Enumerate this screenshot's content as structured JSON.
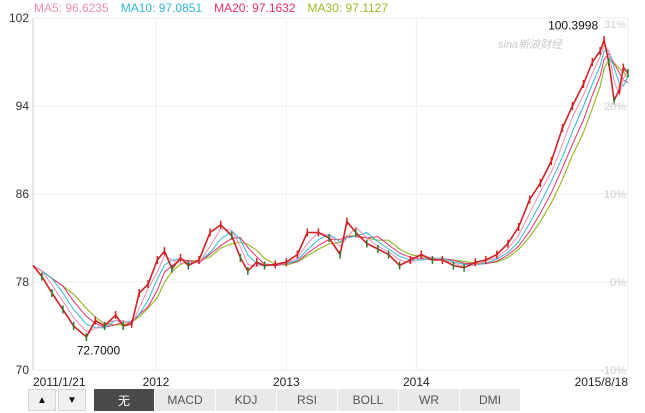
{
  "ma_legend": [
    {
      "label": "MA5: 96.6235",
      "color": "#f08cb4"
    },
    {
      "label": "MA10: 97.0851",
      "color": "#31b6d6"
    },
    {
      "label": "MA20: 97.1632",
      "color": "#e0306e"
    },
    {
      "label": "MA30: 97.1127",
      "color": "#9aba2a"
    }
  ],
  "watermark": "sina新浪财经",
  "tabs": [
    {
      "label": "无",
      "active": true
    },
    {
      "label": "MACD",
      "active": false
    },
    {
      "label": "KDJ",
      "active": false
    },
    {
      "label": "RSI",
      "active": false
    },
    {
      "label": "BOLL",
      "active": false
    },
    {
      "label": "WR",
      "active": false
    },
    {
      "label": "DMI",
      "active": false
    }
  ],
  "nav": {
    "up_icon": "▲",
    "down_icon": "▼"
  },
  "chart_data": {
    "type": "line",
    "subtype": "candlestick-with-moving-averages",
    "ylim": [
      70,
      102
    ],
    "y_ticks": [
      "102",
      "94",
      "86",
      "78",
      "70"
    ],
    "y2_ticks": [
      "31%",
      "20%",
      "10%",
      "0%",
      "-10%"
    ],
    "x_tick_labels": [
      "2011/1/21",
      "2012",
      "2013",
      "2014",
      "2015/8/18"
    ],
    "x_tick_dates": [
      "2011-01-21",
      "2012-01-01",
      "2013-01-01",
      "2014-01-01",
      "2015-08-18"
    ],
    "annotations": [
      {
        "text": "100.3998",
        "date": "2015-06-12",
        "value": 100.3998
      },
      {
        "text": "72.7000",
        "date": "2011-06-20",
        "value": 72.7
      }
    ],
    "grid": true,
    "series": [
      {
        "dates": [
          "2011-01-21",
          "2011-02-15",
          "2011-03-15",
          "2011-04-15",
          "2011-05-15",
          "2011-06-20",
          "2011-07-15",
          "2011-08-10",
          "2011-09-10",
          "2011-10-01",
          "2011-10-25",
          "2011-11-15",
          "2011-12-10",
          "2012-01-05",
          "2012-01-25",
          "2012-02-15",
          "2012-03-10",
          "2012-04-01",
          "2012-05-01",
          "2012-06-01",
          "2012-07-01",
          "2012-08-01",
          "2012-08-25",
          "2012-09-15",
          "2012-10-10",
          "2012-11-01",
          "2012-12-01",
          "2013-01-01",
          "2013-02-01",
          "2013-03-01",
          "2013-04-01",
          "2013-05-01",
          "2013-06-01",
          "2013-06-20",
          "2013-07-15",
          "2013-08-15",
          "2013-09-15",
          "2013-10-15",
          "2013-11-15",
          "2013-12-15",
          "2014-01-15",
          "2014-02-15",
          "2014-03-15",
          "2014-04-15",
          "2014-05-15",
          "2014-06-15",
          "2014-07-15",
          "2014-08-15",
          "2014-09-15",
          "2014-10-15",
          "2014-11-15",
          "2014-12-15",
          "2015-01-15",
          "2015-02-15",
          "2015-03-15",
          "2015-04-15",
          "2015-05-10",
          "2015-06-01",
          "2015-06-12",
          "2015-06-25",
          "2015-07-10",
          "2015-07-25",
          "2015-08-05",
          "2015-08-18"
        ],
        "values": [
          79.5,
          78.5,
          77.0,
          75.5,
          74.0,
          73.0,
          74.5,
          74.0,
          75.0,
          74.0,
          74.2,
          77.0,
          77.8,
          80.0,
          80.8,
          79.2,
          80.2,
          79.5,
          80.0,
          82.5,
          83.2,
          82.2,
          80.2,
          79.0,
          79.8,
          79.5,
          79.6,
          79.8,
          80.5,
          82.5,
          82.5,
          82.0,
          80.5,
          83.5,
          82.5,
          81.5,
          81.0,
          80.5,
          79.5,
          80.0,
          80.5,
          80.0,
          80.0,
          79.5,
          79.3,
          79.8,
          80.0,
          80.5,
          81.5,
          83.0,
          85.5,
          87.0,
          89.0,
          92.0,
          94.0,
          96.0,
          98.0,
          99.0,
          100.0,
          98.0,
          94.5,
          95.5,
          97.5,
          97.0
        ]
      }
    ]
  }
}
